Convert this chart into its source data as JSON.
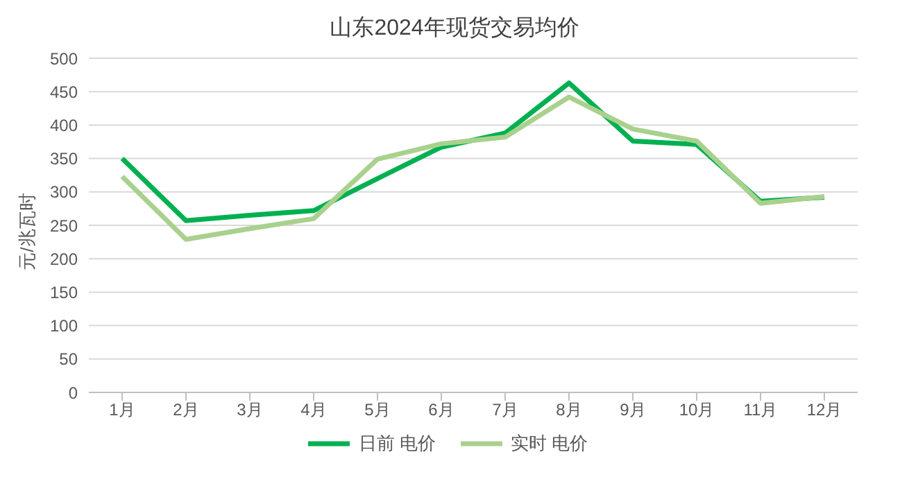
{
  "chart_data": {
    "type": "line",
    "title": "山东2024年现货交易均价",
    "ylabel": "元/兆瓦时",
    "categories": [
      "1月",
      "2月",
      "3月",
      "4月",
      "5月",
      "6月",
      "7月",
      "8月",
      "9月",
      "10月",
      "11月",
      "12月"
    ],
    "series": [
      {
        "name": "日前 电价",
        "color": "#00b050",
        "values": [
          350,
          257,
          265,
          272,
          320,
          367,
          388,
          463,
          376,
          371,
          286,
          292
        ]
      },
      {
        "name": "实时 电价",
        "color": "#a9d18e",
        "values": [
          323,
          229,
          245,
          260,
          349,
          372,
          382,
          442,
          394,
          376,
          283,
          293
        ]
      }
    ],
    "ylim": [
      0,
      500
    ],
    "yticks": [
      0,
      50,
      100,
      150,
      200,
      250,
      300,
      350,
      400,
      450,
      500
    ],
    "grid": "y",
    "legend": "bottom",
    "marker": "none",
    "line_style": "solid"
  }
}
